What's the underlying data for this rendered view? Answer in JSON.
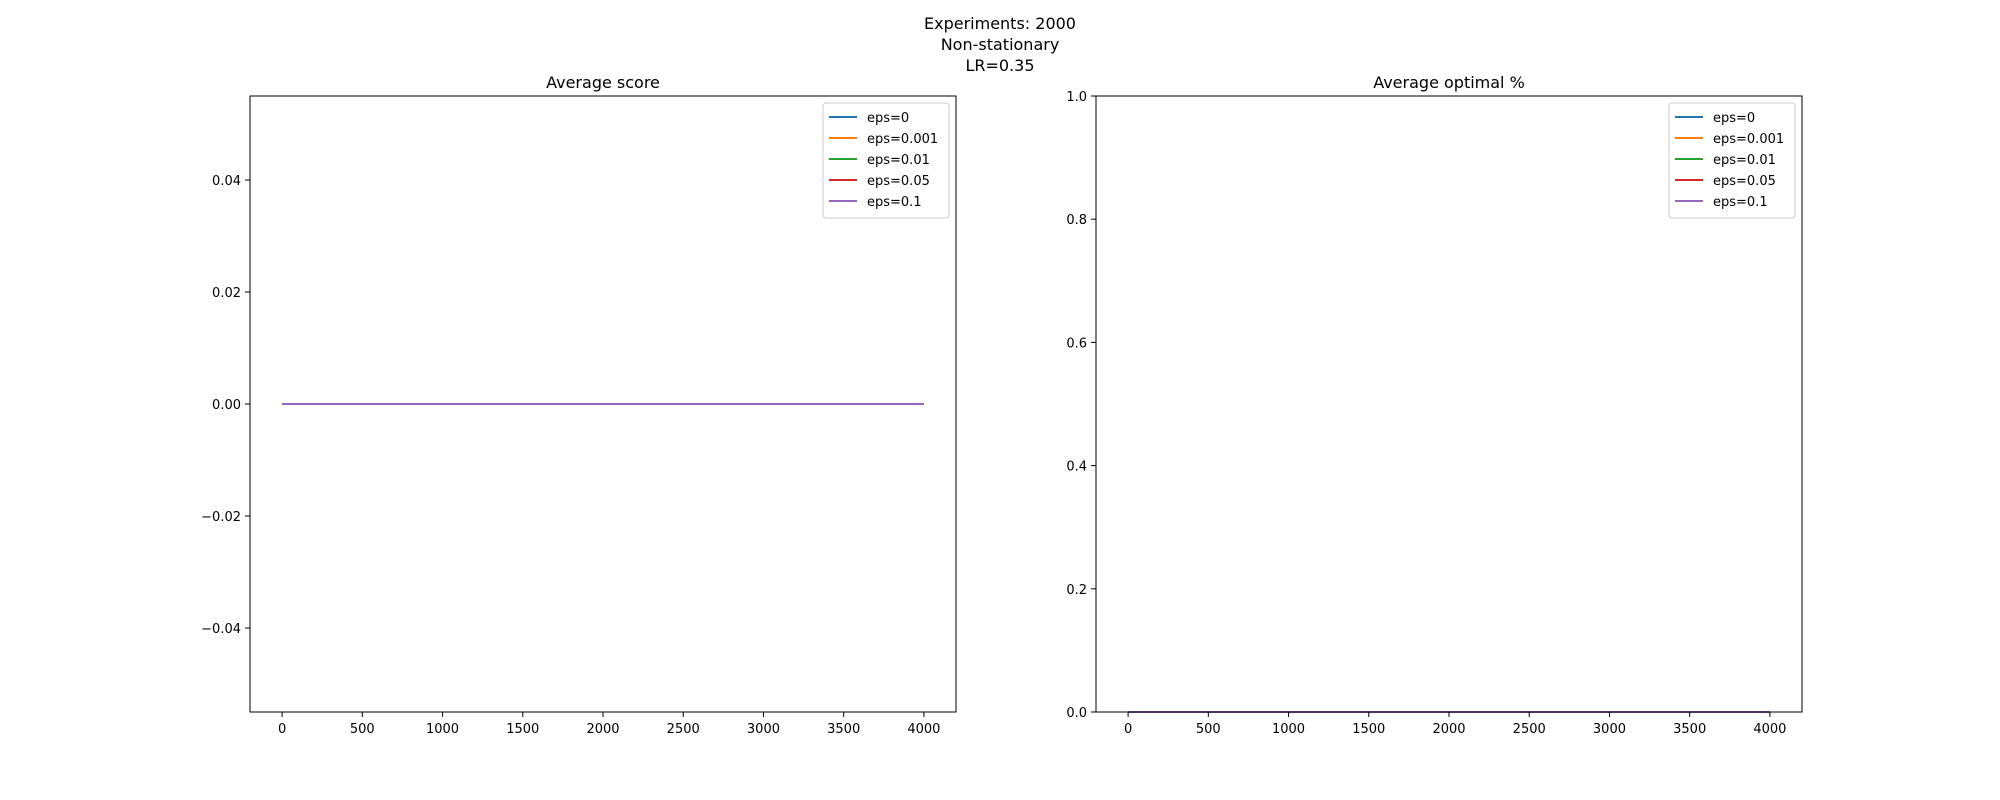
{
  "figure": {
    "suptitle_lines": [
      "Experiments: 2000",
      "Non-stationary",
      "LR=0.35"
    ]
  },
  "colors": {
    "eps=0": "#1f77b4",
    "eps=0.001": "#ff7f0e",
    "eps=0.01": "#2ca02c",
    "eps=0.05": "#d62728",
    "eps=0.1": "#9467bd"
  },
  "chart_data": [
    {
      "type": "line",
      "title": "Average score",
      "xlabel": "",
      "ylabel": "",
      "xlim": [
        -200,
        4200
      ],
      "ylim": [
        -0.055,
        0.055
      ],
      "xticks": [
        0,
        500,
        1000,
        1500,
        2000,
        2500,
        3000,
        3500,
        4000
      ],
      "yticks": [
        -0.04,
        -0.02,
        0.0,
        0.02,
        0.04
      ],
      "ytick_labels": [
        "−0.04",
        "−0.02",
        "0.00",
        "0.02",
        "0.04"
      ],
      "grid": false,
      "legend_position": "upper right",
      "series": [
        {
          "name": "eps=0",
          "color": "#1f77b4",
          "x": [
            0,
            4000
          ],
          "y": [
            0,
            0
          ]
        },
        {
          "name": "eps=0.001",
          "color": "#ff7f0e",
          "x": [
            0,
            4000
          ],
          "y": [
            0,
            0
          ]
        },
        {
          "name": "eps=0.01",
          "color": "#2ca02c",
          "x": [
            0,
            4000
          ],
          "y": [
            0,
            0
          ]
        },
        {
          "name": "eps=0.05",
          "color": "#d62728",
          "x": [
            0,
            4000
          ],
          "y": [
            0,
            0
          ]
        },
        {
          "name": "eps=0.1",
          "color": "#9467bd",
          "x": [
            0,
            4000
          ],
          "y": [
            0,
            0
          ]
        }
      ]
    },
    {
      "type": "line",
      "title": "Average optimal %",
      "xlabel": "",
      "ylabel": "",
      "xlim": [
        -200,
        4200
      ],
      "ylim": [
        0,
        1
      ],
      "xticks": [
        0,
        500,
        1000,
        1500,
        2000,
        2500,
        3000,
        3500,
        4000
      ],
      "yticks": [
        0.0,
        0.2,
        0.4,
        0.6,
        0.8,
        1.0
      ],
      "ytick_labels": [
        "0.0",
        "0.2",
        "0.4",
        "0.6",
        "0.8",
        "1.0"
      ],
      "grid": false,
      "legend_position": "upper right",
      "series": [
        {
          "name": "eps=0",
          "color": "#1f77b4",
          "x": [
            0,
            4000
          ],
          "y": [
            0,
            0
          ]
        },
        {
          "name": "eps=0.001",
          "color": "#ff7f0e",
          "x": [
            0,
            4000
          ],
          "y": [
            0,
            0
          ]
        },
        {
          "name": "eps=0.01",
          "color": "#2ca02c",
          "x": [
            0,
            4000
          ],
          "y": [
            0,
            0
          ]
        },
        {
          "name": "eps=0.05",
          "color": "#d62728",
          "x": [
            0,
            4000
          ],
          "y": [
            0,
            0
          ]
        },
        {
          "name": "eps=0.1",
          "color": "#9467bd",
          "x": [
            0,
            4000
          ],
          "y": [
            0,
            0
          ]
        }
      ]
    }
  ]
}
